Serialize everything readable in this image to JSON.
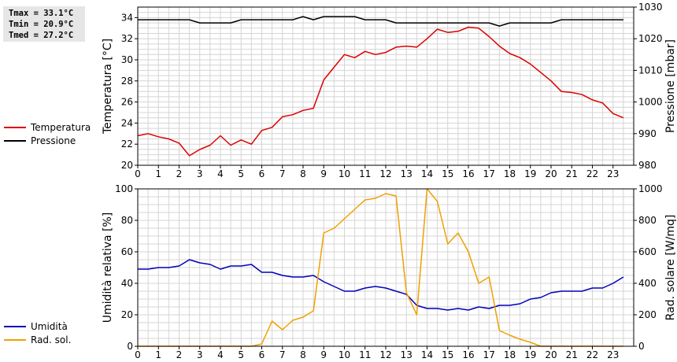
{
  "stats": {
    "tmax": "Tmax = 33.1°C",
    "tmin": "Tmin = 20.9°C",
    "tmed": "Tmed = 27.2°C"
  },
  "colors": {
    "temperature": "#dd0000",
    "pressure": "#000000",
    "humidity": "#0000bb",
    "radiation": "#f0a000",
    "grid": "#d4d4d4",
    "stats_bg": "#e6e6e6"
  },
  "chart_data": [
    {
      "type": "line",
      "y_left": {
        "label": "Temperatura [°C]",
        "range": [
          20,
          35
        ],
        "ticks": [
          20,
          22,
          24,
          26,
          28,
          30,
          32,
          34
        ]
      },
      "y_right": {
        "label": "Pressione [mbar]",
        "range": [
          980,
          1030
        ],
        "ticks": [
          980,
          990,
          1000,
          1010,
          1020,
          1030
        ]
      },
      "x_range": [
        0,
        24
      ],
      "x_ticks": [
        "0",
        "1",
        "2",
        "3",
        "4",
        "5",
        "6",
        "7",
        "8",
        "9",
        "10",
        "11",
        "12",
        "13",
        "14",
        "15",
        "16",
        "17",
        "18",
        "19",
        "20",
        "21",
        "22",
        "23"
      ],
      "grid": true,
      "legend_position": "left",
      "series": [
        {
          "name": "Temperatura",
          "axis": "left",
          "x": [
            0,
            0.5,
            1,
            1.5,
            2,
            2.5,
            3,
            3.5,
            4,
            4.5,
            5,
            5.5,
            6,
            6.5,
            7,
            7.5,
            8,
            8.5,
            9,
            9.5,
            10,
            10.5,
            11,
            11.5,
            12,
            12.5,
            13,
            13.5,
            14,
            14.5,
            15,
            15.5,
            16,
            16.5,
            17,
            17.5,
            18,
            18.5,
            19,
            19.5,
            20,
            20.5,
            21,
            21.5,
            22,
            22.5,
            23,
            23.5
          ],
          "values": [
            22.8,
            23.0,
            22.7,
            22.5,
            22.1,
            20.9,
            21.5,
            21.9,
            22.8,
            21.9,
            22.4,
            22.0,
            23.3,
            23.6,
            24.6,
            24.8,
            25.2,
            25.4,
            28.1,
            29.3,
            30.5,
            30.2,
            30.8,
            30.5,
            30.7,
            31.2,
            31.3,
            31.2,
            32.0,
            32.9,
            32.6,
            32.7,
            33.1,
            33.0,
            32.2,
            31.3,
            30.6,
            30.2,
            29.6,
            28.8,
            28.0,
            27.0,
            26.9,
            26.7,
            26.2,
            25.9,
            24.9,
            24.5
          ]
        },
        {
          "name": "Pressione",
          "axis": "right",
          "x": [
            0,
            0.5,
            1,
            1.5,
            2,
            2.5,
            3,
            3.5,
            4,
            4.5,
            5,
            5.5,
            6,
            6.5,
            7,
            7.5,
            8,
            8.5,
            9,
            9.5,
            10,
            10.5,
            11,
            11.5,
            12,
            12.5,
            13,
            13.5,
            14,
            14.5,
            15,
            15.5,
            16,
            16.5,
            17,
            17.5,
            18,
            18.5,
            19,
            19.5,
            20,
            20.5,
            21,
            21.5,
            22,
            22.5,
            23,
            23.5
          ],
          "values": [
            1026,
            1026,
            1026,
            1026,
            1026,
            1026,
            1025,
            1025,
            1025,
            1025,
            1026,
            1026,
            1026,
            1026,
            1026,
            1026,
            1027,
            1026,
            1027,
            1027,
            1027,
            1027,
            1026,
            1026,
            1026,
            1025,
            1025,
            1025,
            1025,
            1025,
            1025,
            1025,
            1025,
            1025,
            1025,
            1024,
            1025,
            1025,
            1025,
            1025,
            1025,
            1026,
            1026,
            1026,
            1026,
            1026,
            1026,
            1026
          ]
        }
      ]
    },
    {
      "type": "line",
      "y_left": {
        "label": "Umidità relativa [%]",
        "range": [
          0,
          100
        ],
        "ticks": [
          0,
          20,
          40,
          60,
          80,
          100
        ]
      },
      "y_right": {
        "label": "Rad. solare [W/mq]",
        "range": [
          0,
          1000
        ],
        "ticks": [
          0,
          200,
          400,
          600,
          800,
          1000
        ]
      },
      "x_range": [
        0,
        24
      ],
      "x_ticks": [
        "0",
        "1",
        "2",
        "3",
        "4",
        "5",
        "6",
        "7",
        "8",
        "9",
        "10",
        "11",
        "12",
        "13",
        "14",
        "15",
        "16",
        "17",
        "18",
        "19",
        "20",
        "21",
        "22",
        "23"
      ],
      "grid": true,
      "legend_position": "left",
      "series": [
        {
          "name": "Umidità",
          "axis": "left",
          "x": [
            0,
            0.5,
            1,
            1.5,
            2,
            2.5,
            3,
            3.5,
            4,
            4.5,
            5,
            5.5,
            6,
            6.5,
            7,
            7.5,
            8,
            8.5,
            9,
            9.5,
            10,
            10.5,
            11,
            11.5,
            12,
            12.5,
            13,
            13.5,
            14,
            14.5,
            15,
            15.5,
            16,
            16.5,
            17,
            17.5,
            18,
            18.5,
            19,
            19.5,
            20,
            20.5,
            21,
            21.5,
            22,
            22.5,
            23,
            23.5
          ],
          "values": [
            49,
            49,
            50,
            50,
            51,
            55,
            53,
            52,
            49,
            51,
            51,
            52,
            47,
            47,
            45,
            44,
            44,
            45,
            41,
            38,
            35,
            35,
            37,
            38,
            37,
            35,
            33,
            26,
            24,
            24,
            23,
            24,
            23,
            25,
            24,
            26,
            26,
            27,
            30,
            31,
            34,
            35,
            35,
            35,
            37,
            37,
            40,
            44
          ]
        },
        {
          "name": "Rad. sol.",
          "axis": "right",
          "x": [
            0,
            0.5,
            1,
            1.5,
            2,
            2.5,
            3,
            3.5,
            4,
            4.5,
            5,
            5.5,
            6,
            6.5,
            7,
            7.5,
            8,
            8.5,
            9,
            9.5,
            10,
            10.5,
            11,
            11.5,
            12,
            12.5,
            13,
            13.5,
            14,
            14.5,
            15,
            15.5,
            16,
            16.5,
            17,
            17.5,
            18,
            18.5,
            19,
            19.5,
            20,
            20.5,
            21,
            21.5,
            22,
            22.5,
            23,
            23.5
          ],
          "values": [
            0,
            0,
            0,
            0,
            0,
            0,
            0,
            0,
            0,
            0,
            0,
            0,
            15,
            160,
            105,
            165,
            185,
            225,
            720,
            750,
            810,
            870,
            930,
            940,
            970,
            955,
            340,
            200,
            1000,
            920,
            650,
            720,
            600,
            400,
            440,
            100,
            70,
            45,
            25,
            0,
            0,
            0,
            0,
            0,
            0,
            0,
            0,
            0
          ]
        }
      ]
    }
  ]
}
